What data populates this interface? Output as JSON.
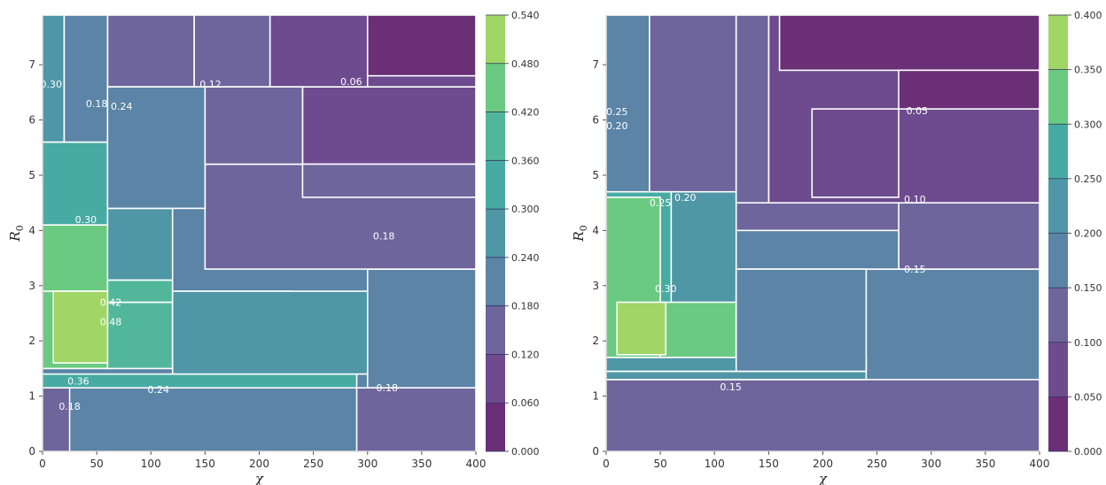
{
  "chart_data": [
    {
      "type": "heatmap",
      "subtype": "filled-contour",
      "xlabel": "χ",
      "ylabel": "R",
      "ylabel_sub": "0",
      "xlim": [
        0,
        400
      ],
      "ylim": [
        0,
        7.9
      ],
      "xticks": [
        "0",
        "50",
        "100",
        "150",
        "200",
        "250",
        "300",
        "350",
        "400"
      ],
      "yticks": [
        "0",
        "1",
        "2",
        "3",
        "4",
        "5",
        "6",
        "7"
      ],
      "colorbar_ticks": [
        "0.000",
        "0.060",
        "0.120",
        "0.180",
        "0.240",
        "0.300",
        "0.360",
        "0.420",
        "0.480",
        "0.540"
      ],
      "levels": [
        0.0,
        0.06,
        0.12,
        0.18,
        0.24,
        0.3,
        0.36,
        0.42,
        0.48,
        0.54
      ],
      "colors": [
        "#6a2f77",
        "#6d4b8e",
        "#6e659c",
        "#5b84a6",
        "#4f96a6",
        "#47aba4",
        "#52b79a",
        "#6bca81",
        "#9fd665",
        "#e4e541"
      ],
      "cells": [
        {
          "x": [
            0,
            400
          ],
          "y": [
            0,
            7.9
          ],
          "value": 0.21
        },
        {
          "x": [
            300,
            400
          ],
          "y": [
            1.15,
            3.3
          ],
          "value": 0.21
        },
        {
          "x": [
            150,
            400
          ],
          "y": [
            3.3,
            5.2
          ],
          "value": 0.15
        },
        {
          "x": [
            240,
            400
          ],
          "y": [
            5.2,
            6.6
          ],
          "value": 0.09
        },
        {
          "x": [
            0,
            290
          ],
          "y": [
            1.15,
            1.4
          ],
          "value": 0.33
        },
        {
          "x": [
            60,
            140
          ],
          "y": [
            6.6,
            7.9
          ],
          "value": 0.15
        },
        {
          "x": [
            140,
            210
          ],
          "y": [
            6.6,
            7.9
          ],
          "value": 0.15
        },
        {
          "x": [
            210,
            400
          ],
          "y": [
            6.6,
            7.9
          ],
          "value": 0.09
        },
        {
          "x": [
            210,
            300
          ],
          "y": [
            6.6,
            7.9
          ],
          "value": 0.09
        },
        {
          "x": [
            300,
            400
          ],
          "y": [
            6.8,
            7.9
          ],
          "value": 0.03
        },
        {
          "x": [
            240,
            400
          ],
          "y": [
            4.6,
            5.2
          ],
          "value": 0.15
        },
        {
          "x": [
            0,
            120
          ],
          "y": [
            3.1,
            4.4
          ],
          "value": 0.27
        },
        {
          "x": [
            0,
            60
          ],
          "y": [
            1.5,
            3.1
          ],
          "value": 0.45
        },
        {
          "x": [
            60,
            120
          ],
          "y": [
            1.5,
            2.7
          ],
          "value": 0.39
        },
        {
          "x": [
            120,
            230
          ],
          "y": [
            1.5,
            2.9
          ],
          "value": 0.33
        },
        {
          "x": [
            0,
            60
          ],
          "y": [
            2.9,
            4.1
          ],
          "value": 0.45
        },
        {
          "x": [
            60,
            120
          ],
          "y": [
            2.7,
            3.1
          ],
          "value": 0.39
        },
        {
          "x": [
            120,
            300
          ],
          "y": [
            1.4,
            2.9
          ],
          "value": 0.27
        },
        {
          "x": [
            0,
            25
          ],
          "y": [
            0,
            1.15
          ],
          "value": 0.15
        },
        {
          "x": [
            290,
            400
          ],
          "y": [
            0,
            1.15
          ],
          "value": 0.15
        },
        {
          "x": [
            0,
            60
          ],
          "y": [
            4.1,
            5.6
          ],
          "value": 0.33
        },
        {
          "x": [
            0,
            20
          ],
          "y": [
            5.6,
            7.9
          ],
          "value": 0.27
        },
        {
          "x": [
            20,
            60
          ],
          "y": [
            5.6,
            7.9
          ],
          "value": 0.21
        },
        {
          "x": [
            60,
            150
          ],
          "y": [
            4.4,
            6.6
          ],
          "value": 0.21
        },
        {
          "x": [
            150,
            240
          ],
          "y": [
            5.2,
            6.6
          ],
          "value": 0.15
        },
        {
          "x": [
            10,
            60
          ],
          "y": [
            1.6,
            2.9
          ],
          "value": 0.51
        }
      ],
      "contour_labels": [
        {
          "text": "0.12",
          "x": 155,
          "y": 6.65
        },
        {
          "text": "0.06",
          "x": 285,
          "y": 6.7
        },
        {
          "text": "0.18",
          "x": 50,
          "y": 6.3
        },
        {
          "text": "0.24",
          "x": 73,
          "y": 6.25
        },
        {
          "text": "0.30",
          "x": 40,
          "y": 4.2
        },
        {
          "text": "0.18",
          "x": 315,
          "y": 3.9
        },
        {
          "text": "0.42",
          "x": 63,
          "y": 2.7
        },
        {
          "text": "0.48",
          "x": 63,
          "y": 2.35
        },
        {
          "text": "0.36",
          "x": 33,
          "y": 1.27
        },
        {
          "text": "0.24",
          "x": 107,
          "y": 1.12
        },
        {
          "text": "0.18",
          "x": 318,
          "y": 1.15
        },
        {
          "text": "0.18",
          "x": 25,
          "y": 0.82
        },
        {
          "text": "0.30",
          "x": 8,
          "y": 6.65
        }
      ]
    },
    {
      "type": "heatmap",
      "subtype": "filled-contour",
      "xlabel": "χ",
      "ylabel": "R",
      "ylabel_sub": "0",
      "xlim": [
        0,
        400
      ],
      "ylim": [
        0,
        7.9
      ],
      "xticks": [
        "0",
        "50",
        "100",
        "150",
        "200",
        "250",
        "300",
        "350",
        "400"
      ],
      "yticks": [
        "0",
        "1",
        "2",
        "3",
        "4",
        "5",
        "6",
        "7"
      ],
      "colorbar_ticks": [
        "0.000",
        "0.050",
        "0.100",
        "0.150",
        "0.200",
        "0.250",
        "0.300",
        "0.350",
        "0.400"
      ],
      "levels": [
        0.0,
        0.05,
        0.1,
        0.15,
        0.2,
        0.25,
        0.3,
        0.35,
        0.4
      ],
      "colors": [
        "#6a2f77",
        "#6d4b8e",
        "#6e659c",
        "#5b84a6",
        "#4f96a6",
        "#47aba4",
        "#6bca81",
        "#9fd665",
        "#e4e541"
      ],
      "cells": [
        {
          "x": [
            0,
            400
          ],
          "y": [
            0,
            7.9
          ],
          "value": 0.125
        },
        {
          "x": [
            0,
            400
          ],
          "y": [
            1.3,
            3.3
          ],
          "value": 0.175
        },
        {
          "x": [
            270,
            400
          ],
          "y": [
            3.3,
            4.5
          ],
          "value": 0.125
        },
        {
          "x": [
            120,
            270
          ],
          "y": [
            3.3,
            4.0
          ],
          "value": 0.175
        },
        {
          "x": [
            150,
            400
          ],
          "y": [
            4.5,
            7.9
          ],
          "value": 0.075
        },
        {
          "x": [
            160,
            400
          ],
          "y": [
            6.9,
            7.9
          ],
          "value": 0.025
        },
        {
          "x": [
            270,
            400
          ],
          "y": [
            6.2,
            6.9
          ],
          "value": 0.025
        },
        {
          "x": [
            190,
            270
          ],
          "y": [
            4.6,
            6.2
          ],
          "value": 0.075
        },
        {
          "x": [
            0,
            240
          ],
          "y": [
            1.3,
            1.45
          ],
          "value": 0.225
        },
        {
          "x": [
            0,
            120
          ],
          "y": [
            1.45,
            4.7
          ],
          "value": 0.225
        },
        {
          "x": [
            0,
            60
          ],
          "y": [
            1.6,
            4.7
          ],
          "value": 0.275
        },
        {
          "x": [
            0,
            40
          ],
          "y": [
            4.7,
            7.9
          ],
          "value": 0.175
        },
        {
          "x": [
            40,
            120
          ],
          "y": [
            4.7,
            7.9
          ],
          "value": 0.125
        },
        {
          "x": [
            120,
            150
          ],
          "y": [
            4.5,
            7.9
          ],
          "value": 0.125
        },
        {
          "x": [
            0,
            120
          ],
          "y": [
            1.7,
            2.7
          ],
          "value": 0.325
        },
        {
          "x": [
            0,
            50
          ],
          "y": [
            1.7,
            4.6
          ],
          "value": 0.325
        },
        {
          "x": [
            10,
            55
          ],
          "y": [
            1.75,
            2.7
          ],
          "value": 0.375
        },
        {
          "x": [
            0,
            240
          ],
          "y": [
            1.45,
            1.7
          ],
          "value": 0.225
        },
        {
          "x": [
            120,
            240
          ],
          "y": [
            1.45,
            3.3
          ],
          "value": 0.175
        }
      ],
      "contour_labels": [
        {
          "text": "0.05",
          "x": 287,
          "y": 6.17
        },
        {
          "text": "0.10",
          "x": 285,
          "y": 4.57
        },
        {
          "text": "0.15",
          "x": 285,
          "y": 3.3
        },
        {
          "text": "0.20",
          "x": 73,
          "y": 4.6
        },
        {
          "text": "0.25",
          "x": 50,
          "y": 4.5
        },
        {
          "text": "0.30",
          "x": 55,
          "y": 2.95
        },
        {
          "text": "0.15",
          "x": 115,
          "y": 1.17
        },
        {
          "text": "0.25",
          "x": 10,
          "y": 6.15
        },
        {
          "text": "0.20",
          "x": 10,
          "y": 5.9
        }
      ]
    }
  ]
}
